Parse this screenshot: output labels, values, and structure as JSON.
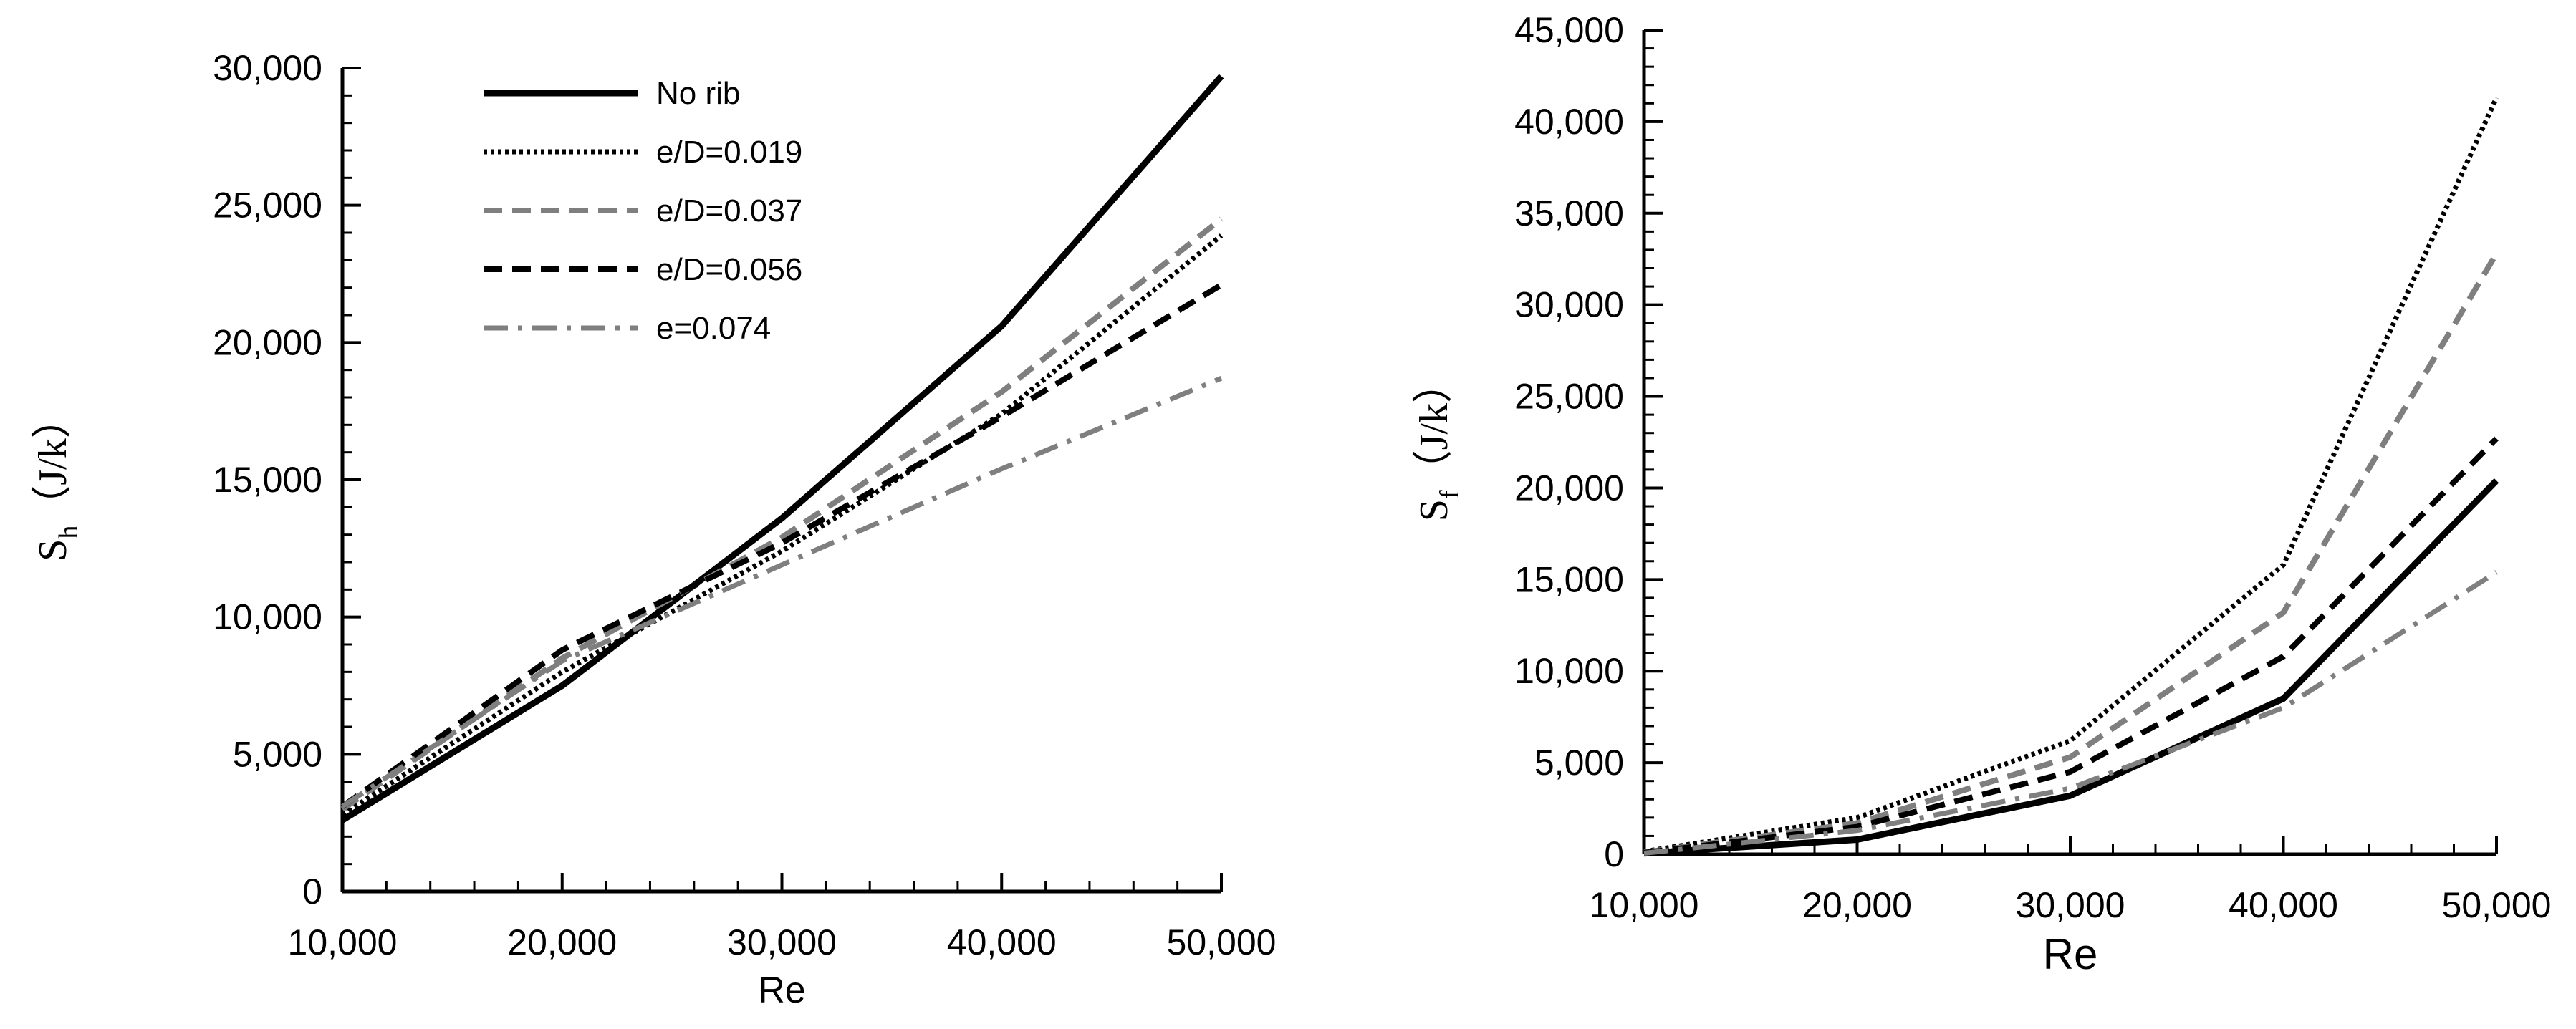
{
  "colors": {
    "black": "#000000",
    "gray": "#7f7f7f"
  },
  "chart_data": [
    {
      "type": "line",
      "xlabel": "Re",
      "ylabel": {
        "main": "S",
        "sub": "h",
        "unit": "（J/k）"
      },
      "xlim": [
        10000,
        50000
      ],
      "ylim": [
        0,
        30000
      ],
      "x_ticks": [
        "10,000",
        "20,000",
        "30,000",
        "40,000",
        "50,000"
      ],
      "y_ticks": [
        "0",
        "5,000",
        "10,000",
        "15,000",
        "20,000",
        "25,000",
        "30,000"
      ],
      "legend_position": "top-left",
      "x": [
        10000,
        20000,
        30000,
        40000,
        50000
      ],
      "series": [
        {
          "name": "No rib",
          "style": "solid",
          "color": "#000000",
          "values": [
            2600,
            7500,
            13600,
            20600,
            29700
          ]
        },
        {
          "name": "e/D=0.019",
          "style": "dotted",
          "color": "#000000",
          "values": [
            2800,
            8000,
            12400,
            17400,
            23900
          ]
        },
        {
          "name": "e/D=0.037",
          "style": "dashed",
          "color": "#7f7f7f",
          "values": [
            3000,
            8500,
            12900,
            18200,
            24500
          ]
        },
        {
          "name": "e/D=0.056",
          "style": "dashed",
          "color": "#000000",
          "values": [
            3100,
            8800,
            12700,
            17300,
            22100
          ]
        },
        {
          "name": "e=0.074",
          "style": "dashdot",
          "color": "#7f7f7f",
          "values": [
            3100,
            8400,
            11900,
            15400,
            18700
          ]
        }
      ]
    },
    {
      "type": "line",
      "xlabel": "Re",
      "ylabel": {
        "main": "S",
        "sub": "f",
        "unit": "（J/k）"
      },
      "xlim": [
        10000,
        50000
      ],
      "ylim": [
        0,
        45000
      ],
      "x_ticks": [
        "10,000",
        "20,000",
        "30,000",
        "40,000",
        "50,000"
      ],
      "y_ticks": [
        "0",
        "5,000",
        "10,000",
        "15,000",
        "20,000",
        "25,000",
        "30,000",
        "35,000",
        "40,000",
        "45,000"
      ],
      "x": [
        10000,
        20000,
        30000,
        40000,
        50000
      ],
      "series": [
        {
          "style": "solid",
          "color": "#000000",
          "values": [
            50,
            800,
            3200,
            8500,
            20400
          ]
        },
        {
          "style": "dotted",
          "color": "#000000",
          "values": [
            150,
            2000,
            6200,
            15800,
            41300
          ]
        },
        {
          "style": "dashed",
          "color": "#7f7f7f",
          "values": [
            100,
            1700,
            5300,
            13200,
            32800
          ]
        },
        {
          "style": "dashed",
          "color": "#000000",
          "values": [
            80,
            1500,
            4500,
            10800,
            22700
          ]
        },
        {
          "style": "dashdot",
          "color": "#7f7f7f",
          "values": [
            60,
            1300,
            3600,
            8000,
            15400
          ]
        }
      ]
    }
  ]
}
